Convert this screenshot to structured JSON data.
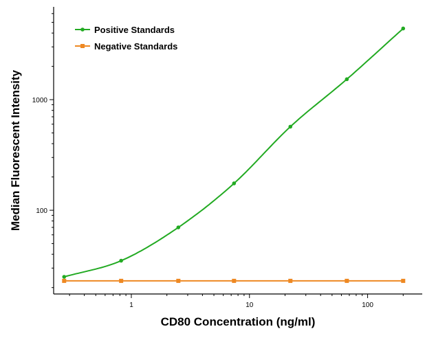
{
  "chart_data": {
    "type": "line",
    "xlabel": "CD80 Concentration (ng/ml)",
    "ylabel": "Median Fluorescent Intensity",
    "xscale": "log",
    "yscale": "log",
    "xlim": [
      0.22,
      290
    ],
    "ylim": [
      17.5,
      6900
    ],
    "x_ticks": [
      1,
      10,
      100
    ],
    "x_tick_labels": [
      "1",
      "10",
      "100"
    ],
    "y_ticks": [
      100,
      1000
    ],
    "y_tick_labels": [
      "100",
      "1000"
    ],
    "grid": false,
    "legend_position": "top-left",
    "series": [
      {
        "name": "Positive Standards",
        "color": "#22aa22",
        "marker": "circle",
        "x": [
          0.27,
          0.82,
          2.5,
          7.4,
          22.2,
          66.7,
          200
        ],
        "y": [
          25,
          35,
          70,
          175,
          570,
          1530,
          4400
        ]
      },
      {
        "name": "Negative Standards",
        "color": "#ee8822",
        "marker": "square",
        "x": [
          0.27,
          0.82,
          2.5,
          7.4,
          22.2,
          66.7,
          200
        ],
        "y": [
          23,
          23,
          23,
          23,
          23,
          23,
          23
        ]
      }
    ]
  }
}
